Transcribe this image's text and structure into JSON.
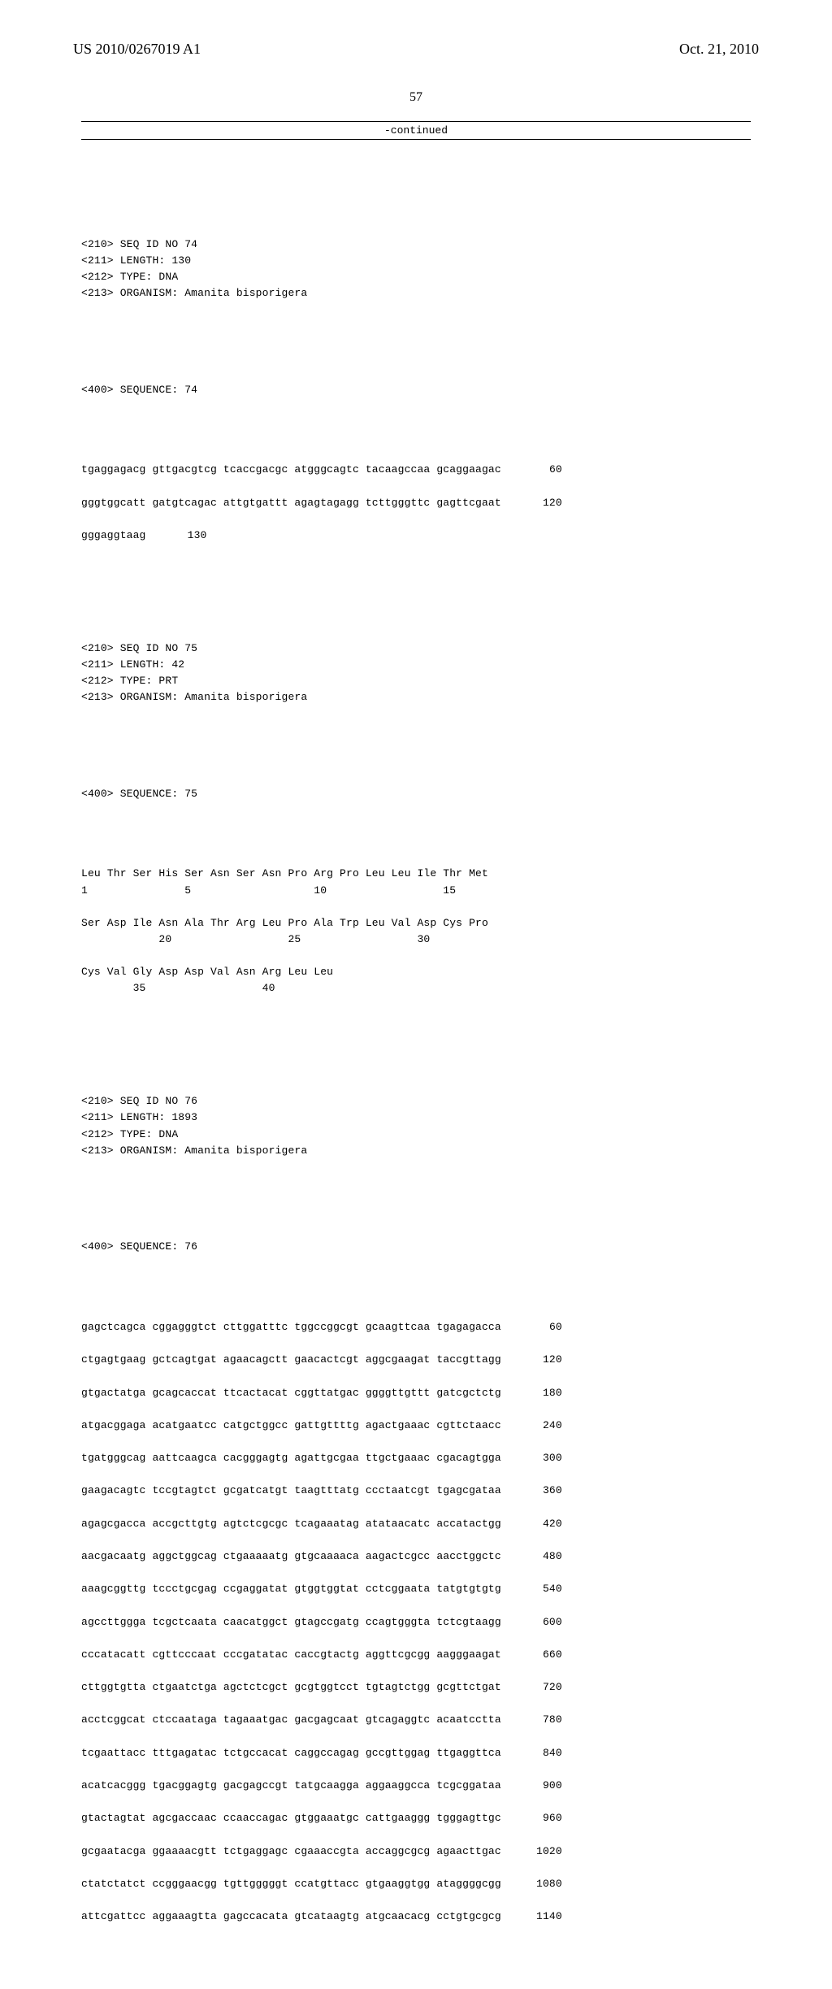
{
  "header": {
    "left": "US 2010/0267019 A1",
    "right": "Oct. 21, 2010"
  },
  "page_number": "57",
  "continued_label": "-continued",
  "seq74": {
    "header": [
      "<210> SEQ ID NO 74",
      "<211> LENGTH: 130",
      "<212> TYPE: DNA",
      "<213> ORGANISM: Amanita bisporigera"
    ],
    "seq_label": "<400> SEQUENCE: 74",
    "lines": [
      {
        "text": "tgaggagacg gttgacgtcg tcaccgacgc atgggcagtc tacaagccaa gcaggaagac",
        "num": "60"
      },
      {
        "text": "gggtggcatt gatgtcagac attgtgattt agagtagagg tcttgggttc gagttcgaat",
        "num": "120"
      },
      {
        "text": "gggaggtaag",
        "num": "130"
      }
    ]
  },
  "seq75": {
    "header": [
      "<210> SEQ ID NO 75",
      "<211> LENGTH: 42",
      "<212> TYPE: PRT",
      "<213> ORGANISM: Amanita bisporigera"
    ],
    "seq_label": "<400> SEQUENCE: 75",
    "prt_lines": [
      "Leu Thr Ser His Ser Asn Ser Asn Pro Arg Pro Leu Leu Ile Thr Met",
      "1               5                   10                  15",
      "",
      "Ser Asp Ile Asn Ala Thr Arg Leu Pro Ala Trp Leu Val Asp Cys Pro",
      "            20                  25                  30",
      "",
      "Cys Val Gly Asp Asp Val Asn Arg Leu Leu",
      "        35                  40"
    ]
  },
  "seq76": {
    "header": [
      "<210> SEQ ID NO 76",
      "<211> LENGTH: 1893",
      "<212> TYPE: DNA",
      "<213> ORGANISM: Amanita bisporigera"
    ],
    "seq_label": "<400> SEQUENCE: 76",
    "lines": [
      {
        "text": "gagctcagca cggagggtct cttggatttc tggccggcgt gcaagttcaa tgagagacca",
        "num": "60"
      },
      {
        "text": "ctgagtgaag gctcagtgat agaacagctt gaacactcgt aggcgaagat taccgttagg",
        "num": "120"
      },
      {
        "text": "gtgactatga gcagcaccat ttcactacat cggttatgac ggggttgttt gatcgctctg",
        "num": "180"
      },
      {
        "text": "atgacggaga acatgaatcc catgctggcc gattgttttg agactgaaac cgttctaacc",
        "num": "240"
      },
      {
        "text": "tgatgggcag aattcaagca cacgggagtg agattgcgaa ttgctgaaac cgacagtgga",
        "num": "300"
      },
      {
        "text": "gaagacagtc tccgtagtct gcgatcatgt taagtttatg ccctaatcgt tgagcgataa",
        "num": "360"
      },
      {
        "text": "agagcgacca accgcttgtg agtctcgcgc tcagaaatag atataacatc accatactgg",
        "num": "420"
      },
      {
        "text": "aacgacaatg aggctggcag ctgaaaaatg gtgcaaaaca aagactcgcc aacctggctc",
        "num": "480"
      },
      {
        "text": "aaagcggttg tccctgcgag ccgaggatat gtggtggtat cctcggaata tatgtgtgtg",
        "num": "540"
      },
      {
        "text": "agccttggga tcgctcaata caacatggct gtagccgatg ccagtgggta tctcgtaagg",
        "num": "600"
      },
      {
        "text": "cccatacatt cgttcccaat cccgatatac caccgtactg aggttcgcgg aagggaagat",
        "num": "660"
      },
      {
        "text": "cttggtgtta ctgaatctga agctctcgct gcgtggtcct tgtagtctgg gcgttctgat",
        "num": "720"
      },
      {
        "text": "acctcggcat ctccaataga tagaaatgac gacgagcaat gtcagaggtc acaatcctta",
        "num": "780"
      },
      {
        "text": "tcgaattacc tttgagatac tctgccacat caggccagag gccgttggag ttgaggttca",
        "num": "840"
      },
      {
        "text": "acatcacggg tgacggagtg gacgagccgt tatgcaagga aggaaggcca tcgcggataa",
        "num": "900"
      },
      {
        "text": "gtactagtat agcgaccaac ccaaccagac gtggaaatgc cattgaaggg tgggagttgc",
        "num": "960"
      },
      {
        "text": "gcgaatacga ggaaaacgtt tctgaggagc cgaaaccgta accaggcgcg agaacttgac",
        "num": "1020"
      },
      {
        "text": "ctatctatct ccgggaacgg tgttgggggt ccatgttacc gtgaaggtgg ataggggcgg",
        "num": "1080"
      },
      {
        "text": "attcgattcc aggaaagtta gagccacata gtcataagtg atgcaacacg cctgtgcgcg",
        "num": "1140"
      }
    ]
  }
}
